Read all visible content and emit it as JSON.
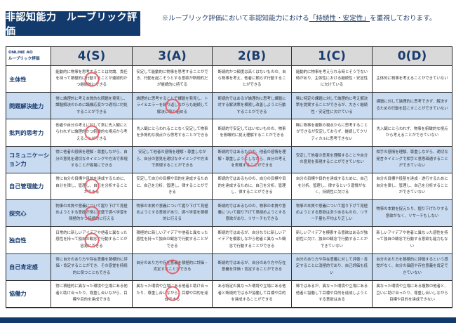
{
  "title": "非認知能力　ルーブリック評価",
  "note": {
    "prefix": "※ルーブリック評価において非認知能力における",
    "highlight": "「持続性・安定性」",
    "suffix": "を重視しております。"
  },
  "table": {
    "corner": [
      "ONLINE AO",
      "ルーブリック評価"
    ],
    "levels": [
      "4(S)",
      "3(A)",
      "2(B)",
      "1(C)",
      "0(D)"
    ],
    "rows": [
      {
        "label": "主体性",
        "circled": "4(S)",
        "cells": [
          "能動的に物事を思考することは勿論、責任を持って積極的に行動することが連続的かつ継続的にできる",
          "安定して能動的に物事を思考することができ、行動を起こそうとする意欲が断続的だが継続的に持てる",
          "断続的かつ頻度は高くはないものの、自ら物事を考え、他者に頼らず行動することができる",
          "能動的に物事を考えられる時とそうでない時があり、主体性における継続性・安定性に欠けている",
          "主体的に物事を考えることができていない"
        ]
      },
      {
        "label": "問題解決能力",
        "circled": "3(A)",
        "cells": [
          "常に論理的に考え本質的な問題を発見し、課題解決のために臨機応変かつ適切に対処することができる",
          "論理的に思考することで課題を発見し、トライ＆エラーを繰り返しながらも継続して解決に取り組める",
          "断続的ではあるが論理的に思考し課題に対する解決策を模索し改善しようと行動することができる",
          "稀に特定の課題に対して論理的に考え解決策を提案することができるが、大きく継続性・安定性に欠けている",
          "課題に対して論理的に思考できず、解決するための行動を起こすことができていない"
        ]
      },
      {
        "label": "批判的思考力",
        "circled": "4(S)",
        "cells": [
          "他者や自分の考えに対して常に先入観にとらわれずに論理的かつ俯瞰的な視点から考えることができる",
          "先入観にとらわれることなく安定して物事を多角的な視点から思考することができる",
          "断続的で安定してはいないものの、物事を俯瞰的に捉え理解することができる",
          "稀に物事を複数の視点からに思考することができるが安定しておらず、継続してクリティカルに思考できない",
          "先入観にとらわれず、物事を俯瞰的な視点から考えることができていない"
        ]
      },
      {
        "label": "コミュニケーション力",
        "circled": "2(B)",
        "cells": [
          "常に他者の感情を理解・尊重しながら、自分の意見を適切なタイミングや方法で表現することが容易にできる",
          "安定して他者の感情を理解・尊重しながら、自分の意見を適切なタイミングや方法で表現することができる",
          "断続的ではあるものの、他者の感情を理解・尊重しようとしながら、自分の考えを表現することができる",
          "安定して他者の意見を理解することや自分の意見を表現することができていない",
          "相手の感情を理解、尊重しながら、適切な発言タイミングで相手と意思疎通することができていない"
        ]
      },
      {
        "label": "自己管理能力",
        "circled": "4(S)",
        "cells": [
          "常に自分の目標や目的を達成するために、自分を律し、管理し、自己を分析することができる",
          "安定して自分の目標や目的を達成するために、自己を分析、管理し、律することができる",
          "断続的ではあるものの、自分の目標や目的を達成するために、自己を分析、管理し、律することができる",
          "自分の目標や目的を達成するために、自己を分析、管理し、律するという習慣がなく、持続性に欠ける",
          "自分の目標や役割を達成・遂行するために自分を律し、管理し、自己を分析することができていない"
        ]
      },
      {
        "label": "探究心",
        "circled": "4(S)",
        "cells": [
          "物事の本質や意義について掘り下げて見極めようとする意欲が常に旺盛で調べ学習を積極的かつ持続的に行える",
          "物事の本質や意義について掘り下げて見極めようとする意欲があり、調べ学習を積極的に行える",
          "断続的ではあるものの、物事の本質や意義について掘り下げて見極めようとする意欲があり、リサーチもできる",
          "物事の本質や意義について掘り下げて見極めようとする意欲は多少あるものの、リサーチ量も平均より乏しい",
          "物事の本質を捉えたり、掘り下げたりする意欲がなく、リサーチもしない"
        ]
      },
      {
        "label": "独自性",
        "circled": "4(S)",
        "cells": [
          "日常的に新しいアイデアや他者と異なった感性を持って独自の観念で行動することが容易にできる",
          "積極的に新しいアイデアや他者と異なった感性を持って独自の観念で行動することができる",
          "断続的ではあるが、自分なりに新しいアイデアを模索しながら他者と異なった観念で行動することができる",
          "新しいアイデアを模索する意欲はあるが独創性に欠け、独自の観念で行動することができていない",
          "新しいアイデアや他者と異なった感性を持って独自の観念で行動する意欲も能力もない"
        ]
      },
      {
        "label": "自己肯定感",
        "circled": "3(A)",
        "cells": [
          "常に自分のあり方や存在意義を積極的に評価・肯定することができ、その感覚を持続的に保つこともできる",
          "自分のあり方や存在意義を積極的に評価・肯定することができる",
          "断続的ではあるが、自分のあり方や存在意義を評価・肯定することができる",
          "自分のあり方や存在意義に対して評価・肯定することに消極的であり、自己評価も低い",
          "自分のあり方を積極的に評価するという感覚がなく、自分の価値や存在意義を肯定できていない"
        ]
      },
      {
        "label": "協働力",
        "circled": "3(A)",
        "cells": [
          "常に積極的に異なった環境や立場にある他者と助け合ったり、尊重し合いながら、目標や目的を達成できる",
          "異なった環境や立場にある他者と助け合ったり、尊重し合いながら、目標や目的を達成できる",
          "ある特定の異なった環境や立場にある他者と断続的ではるが協働して目標や目的を達成することができる",
          "稀ではあるが、異なった環境や立場にある他者と協働して目標や目的を達成しようとする意欲はある",
          "異なった環境や立場にある複数の他者と、互いに助け合ったり、尊重し合いしながら目標や目的を達成できない"
        ]
      }
    ]
  },
  "colors": {
    "navy": "#123a6c",
    "header_gray": "#d9d9d9",
    "row_blue": "#c9dbf1",
    "circle_red": "#e8555e"
  }
}
